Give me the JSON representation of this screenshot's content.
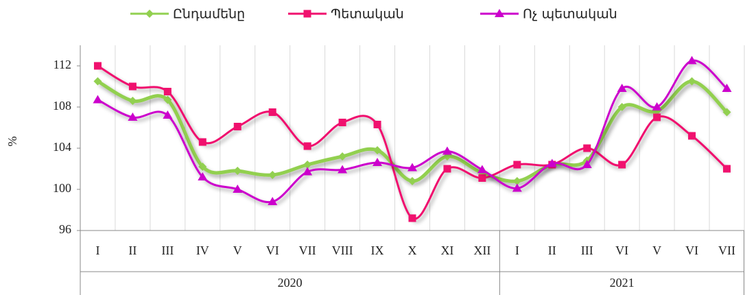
{
  "chart_data": {
    "type": "line",
    "y_label": "%",
    "categories": [
      "I",
      "II",
      "III",
      "IV",
      "V",
      "VI",
      "VII",
      "VIII",
      "IX",
      "X",
      "XI",
      "XII",
      "I",
      "II",
      "III",
      "VI",
      "V",
      "VI",
      "VII"
    ],
    "category_groups": [
      {
        "label": "2020",
        "count": 12
      },
      {
        "label": "2021",
        "count": 7
      }
    ],
    "series": [
      {
        "name": "Ընդամենը",
        "color": "#92d050",
        "marker": "diamond",
        "values": [
          110.5,
          108.6,
          108.7,
          102.2,
          101.8,
          101.4,
          102.4,
          103.2,
          103.8,
          100.8,
          103.2,
          101.6,
          100.8,
          102.4,
          102.8,
          108.0,
          107.6,
          110.5,
          107.5
        ]
      },
      {
        "name": "Պետական",
        "color": "#f0116e",
        "marker": "square",
        "values": [
          112.0,
          110.0,
          109.5,
          104.6,
          106.1,
          107.5,
          104.2,
          106.5,
          106.3,
          97.2,
          102.0,
          101.1,
          102.4,
          102.4,
          104.0,
          102.4,
          107.0,
          105.2,
          102.0
        ]
      },
      {
        "name": "Ոչ պետական",
        "color": "#cc00cc",
        "marker": "triangle",
        "values": [
          108.7,
          107.0,
          107.2,
          101.2,
          100.0,
          98.8,
          101.7,
          101.9,
          102.6,
          102.1,
          103.7,
          101.9,
          100.1,
          102.5,
          102.4,
          109.8,
          108.0,
          112.5,
          109.8
        ]
      }
    ],
    "ylim": [
      96,
      114
    ],
    "yticks": [
      96,
      100,
      104,
      108,
      112
    ],
    "smooth": true,
    "legend": "top"
  }
}
